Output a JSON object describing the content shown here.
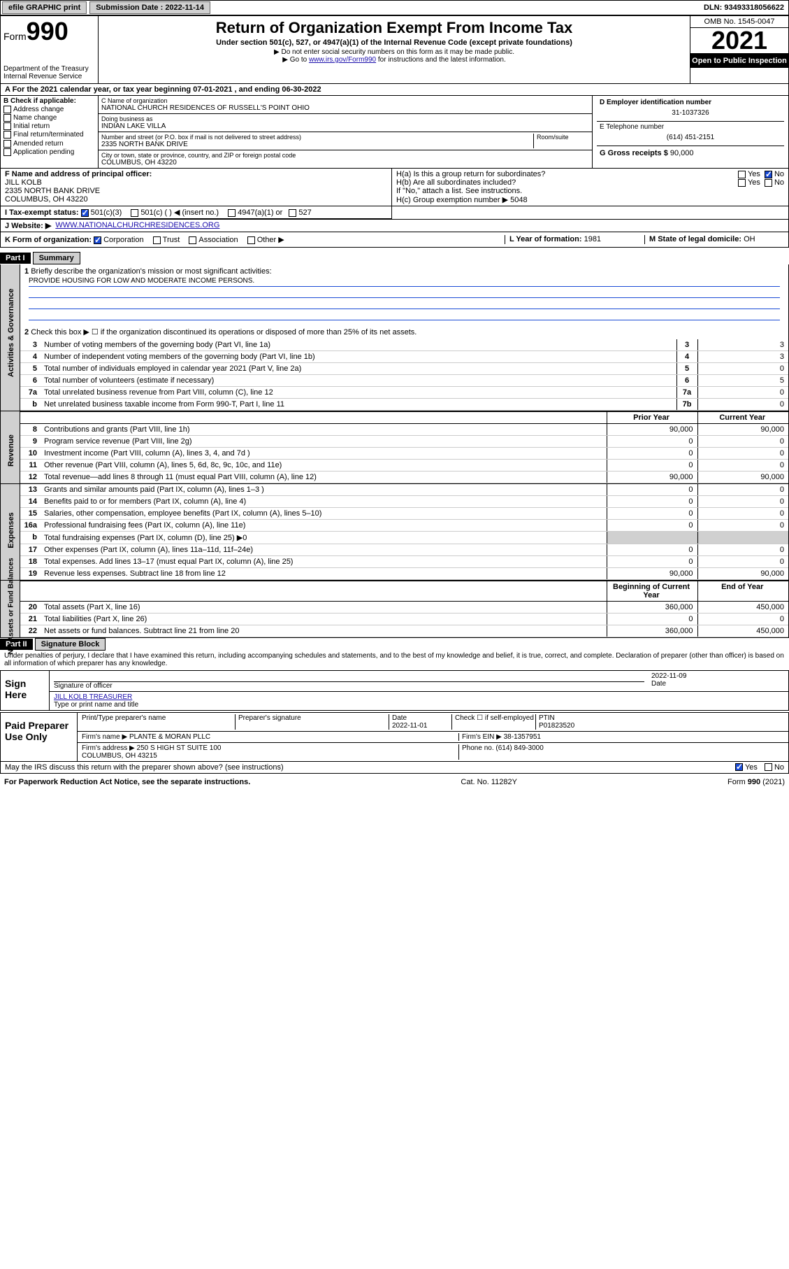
{
  "topbar": {
    "efile": "efile GRAPHIC print",
    "submission_label": "Submission Date : 2022-11-14",
    "dln": "DLN: 93493318056622"
  },
  "header": {
    "form_prefix": "Form",
    "form_number": "990",
    "title": "Return of Organization Exempt From Income Tax",
    "subtitle": "Under section 501(c), 527, or 4947(a)(1) of the Internal Revenue Code (except private foundations)",
    "note1": "▶ Do not enter social security numbers on this form as it may be made public.",
    "note2_pre": "▶ Go to ",
    "note2_link": "www.irs.gov/Form990",
    "note2_post": " for instructions and the latest information.",
    "dept": "Department of the Treasury\nInternal Revenue Service",
    "omb": "OMB No. 1545-0047",
    "year": "2021",
    "open": "Open to Public Inspection"
  },
  "A": {
    "text": "A For the 2021 calendar year, or tax year beginning 07-01-2021 , and ending 06-30-2022"
  },
  "B": {
    "label": "B Check if applicable:",
    "items": [
      "Address change",
      "Name change",
      "Initial return",
      "Final return/terminated",
      "Amended return",
      "Application pending"
    ]
  },
  "C": {
    "name_label": "C Name of organization",
    "name": "NATIONAL CHURCH RESIDENCES OF RUSSELL'S POINT OHIO",
    "dba_label": "Doing business as",
    "dba": "INDIAN LAKE VILLA",
    "street_label": "Number and street (or P.O. box if mail is not delivered to street address)",
    "room_label": "Room/suite",
    "street": "2335 NORTH BANK DRIVE",
    "city_label": "City or town, state or province, country, and ZIP or foreign postal code",
    "city": "COLUMBUS, OH  43220"
  },
  "D": {
    "label": "D Employer identification number",
    "value": "31-1037326"
  },
  "E": {
    "label": "E Telephone number",
    "value": "(614) 451-2151"
  },
  "G": {
    "label": "G Gross receipts $",
    "value": "90,000"
  },
  "F": {
    "label": "F Name and address of principal officer:",
    "name": "JILL KOLB",
    "addr1": "2335 NORTH BANK DRIVE",
    "addr2": "COLUMBUS, OH  43220"
  },
  "H": {
    "a": "H(a) Is this a group return for subordinates?",
    "a_yes": "Yes",
    "a_no": "No",
    "b": "H(b) Are all subordinates included?",
    "b_yes": "Yes",
    "b_no": "No",
    "b_note": "If \"No,\" attach a list. See instructions.",
    "c": "H(c) Group exemption number ▶",
    "c_val": "5048"
  },
  "I": {
    "label": "I Tax-exempt status:",
    "opt1": "501(c)(3)",
    "opt2": "501(c) ( ) ◀ (insert no.)",
    "opt3": "4947(a)(1) or",
    "opt4": "527"
  },
  "J": {
    "label": "J Website: ▶",
    "value": "WWW.NATIONALCHURCHRESIDENCES.ORG"
  },
  "K": {
    "label": "K Form of organization:",
    "opts": [
      "Corporation",
      "Trust",
      "Association",
      "Other ▶"
    ]
  },
  "L": {
    "label": "L Year of formation:",
    "value": "1981"
  },
  "M": {
    "label": "M State of legal domicile:",
    "value": "OH"
  },
  "partI": {
    "hdr": "Part I",
    "title": "Summary",
    "line1_label": "Briefly describe the organization's mission or most significant activities:",
    "line1_value": "PROVIDE HOUSING FOR LOW AND MODERATE INCOME PERSONS.",
    "line2": "Check this box ▶ ☐ if the organization discontinued its operations or disposed of more than 25% of its net assets.",
    "vtab_ag": "Activities & Governance",
    "vtab_rev": "Revenue",
    "vtab_exp": "Expenses",
    "vtab_net": "Net Assets or Fund Balances",
    "ag_rows": [
      {
        "n": "3",
        "label": "Number of voting members of the governing body (Part VI, line 1a)",
        "box": "3",
        "val": "3"
      },
      {
        "n": "4",
        "label": "Number of independent voting members of the governing body (Part VI, line 1b)",
        "box": "4",
        "val": "3"
      },
      {
        "n": "5",
        "label": "Total number of individuals employed in calendar year 2021 (Part V, line 2a)",
        "box": "5",
        "val": "0"
      },
      {
        "n": "6",
        "label": "Total number of volunteers (estimate if necessary)",
        "box": "6",
        "val": "5"
      },
      {
        "n": "7a",
        "label": "Total unrelated business revenue from Part VIII, column (C), line 12",
        "box": "7a",
        "val": "0"
      },
      {
        "n": "b",
        "label": "Net unrelated business taxable income from Form 990-T, Part I, line 11",
        "box": "7b",
        "val": "0"
      }
    ],
    "rev_hdr_prior": "Prior Year",
    "rev_hdr_curr": "Current Year",
    "rev_rows": [
      {
        "n": "8",
        "label": "Contributions and grants (Part VIII, line 1h)",
        "prior": "90,000",
        "curr": "90,000"
      },
      {
        "n": "9",
        "label": "Program service revenue (Part VIII, line 2g)",
        "prior": "0",
        "curr": "0"
      },
      {
        "n": "10",
        "label": "Investment income (Part VIII, column (A), lines 3, 4, and 7d )",
        "prior": "0",
        "curr": "0"
      },
      {
        "n": "11",
        "label": "Other revenue (Part VIII, column (A), lines 5, 6d, 8c, 9c, 10c, and 11e)",
        "prior": "0",
        "curr": "0"
      },
      {
        "n": "12",
        "label": "Total revenue—add lines 8 through 11 (must equal Part VIII, column (A), line 12)",
        "prior": "90,000",
        "curr": "90,000"
      }
    ],
    "exp_rows": [
      {
        "n": "13",
        "label": "Grants and similar amounts paid (Part IX, column (A), lines 1–3 )",
        "prior": "0",
        "curr": "0"
      },
      {
        "n": "14",
        "label": "Benefits paid to or for members (Part IX, column (A), line 4)",
        "prior": "0",
        "curr": "0"
      },
      {
        "n": "15",
        "label": "Salaries, other compensation, employee benefits (Part IX, column (A), lines 5–10)",
        "prior": "0",
        "curr": "0"
      },
      {
        "n": "16a",
        "label": "Professional fundraising fees (Part IX, column (A), line 11e)",
        "prior": "0",
        "curr": "0"
      },
      {
        "n": "b",
        "label": "Total fundraising expenses (Part IX, column (D), line 25) ▶0",
        "prior": "",
        "curr": "",
        "shade": true
      },
      {
        "n": "17",
        "label": "Other expenses (Part IX, column (A), lines 11a–11d, 11f–24e)",
        "prior": "0",
        "curr": "0"
      },
      {
        "n": "18",
        "label": "Total expenses. Add lines 13–17 (must equal Part IX, column (A), line 25)",
        "prior": "0",
        "curr": "0"
      },
      {
        "n": "19",
        "label": "Revenue less expenses. Subtract line 18 from line 12",
        "prior": "90,000",
        "curr": "90,000"
      }
    ],
    "net_hdr_beg": "Beginning of Current Year",
    "net_hdr_end": "End of Year",
    "net_rows": [
      {
        "n": "20",
        "label": "Total assets (Part X, line 16)",
        "beg": "360,000",
        "end": "450,000"
      },
      {
        "n": "21",
        "label": "Total liabilities (Part X, line 26)",
        "beg": "0",
        "end": "0"
      },
      {
        "n": "22",
        "label": "Net assets or fund balances. Subtract line 21 from line 20",
        "beg": "360,000",
        "end": "450,000"
      }
    ]
  },
  "partII": {
    "hdr": "Part II",
    "title": "Signature Block",
    "decl": "Under penalties of perjury, I declare that I have examined this return, including accompanying schedules and statements, and to the best of my knowledge and belief, it is true, correct, and complete. Declaration of preparer (other than officer) is based on all information of which preparer has any knowledge.",
    "sign_here": "Sign Here",
    "sig_officer": "Signature of officer",
    "sig_date_label": "Date",
    "sig_date": "2022-11-09",
    "sig_name_title": "JILL KOLB  TREASURER",
    "sig_type_label": "Type or print name and title",
    "paid": "Paid Preparer Use Only",
    "prep_name_label": "Print/Type preparer's name",
    "prep_sig_label": "Preparer's signature",
    "prep_date_label": "Date",
    "prep_date": "2022-11-01",
    "prep_check": "Check ☐ if self-employed",
    "ptin_label": "PTIN",
    "ptin": "P01823520",
    "firm_name_label": "Firm's name ▶",
    "firm_name": "PLANTE & MORAN PLLC",
    "firm_ein_label": "Firm's EIN ▶",
    "firm_ein": "38-1357951",
    "firm_addr_label": "Firm's address ▶",
    "firm_addr": "250 S HIGH ST SUITE 100\nCOLUMBUS, OH  43215",
    "firm_phone_label": "Phone no.",
    "firm_phone": "(614) 849-3000",
    "discuss": "May the IRS discuss this return with the preparer shown above? (see instructions)",
    "yes": "Yes",
    "no": "No"
  },
  "footer": {
    "left": "For Paperwork Reduction Act Notice, see the separate instructions.",
    "mid": "Cat. No. 11282Y",
    "right": "Form 990 (2021)"
  }
}
